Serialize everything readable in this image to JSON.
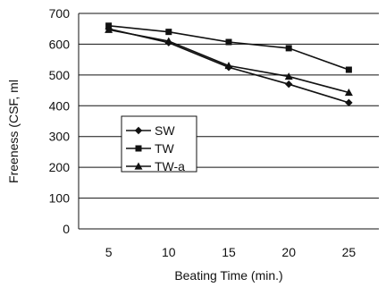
{
  "chart_data": {
    "type": "line",
    "xlabel": "Beating Time (min.)",
    "ylabel": "Freeness (CSF, ml",
    "categories": [
      "5",
      "10",
      "15",
      "20",
      "25"
    ],
    "x": [
      5,
      10,
      15,
      20,
      25
    ],
    "ylim": [
      0,
      700
    ],
    "yticks": [
      0,
      100,
      200,
      300,
      400,
      500,
      600,
      700
    ],
    "grid": "horizontal",
    "legend_position": "center-left",
    "series": [
      {
        "name": "SW",
        "marker": "diamond",
        "values": [
          650,
          605,
          525,
          470,
          410
        ]
      },
      {
        "name": "TW",
        "marker": "square",
        "values": [
          660,
          640,
          607,
          587,
          517
        ]
      },
      {
        "name": "TW-a",
        "marker": "triangle",
        "values": [
          647,
          610,
          530,
          495,
          443
        ]
      }
    ],
    "line_color": "#111111",
    "grid_color": "#111111"
  }
}
